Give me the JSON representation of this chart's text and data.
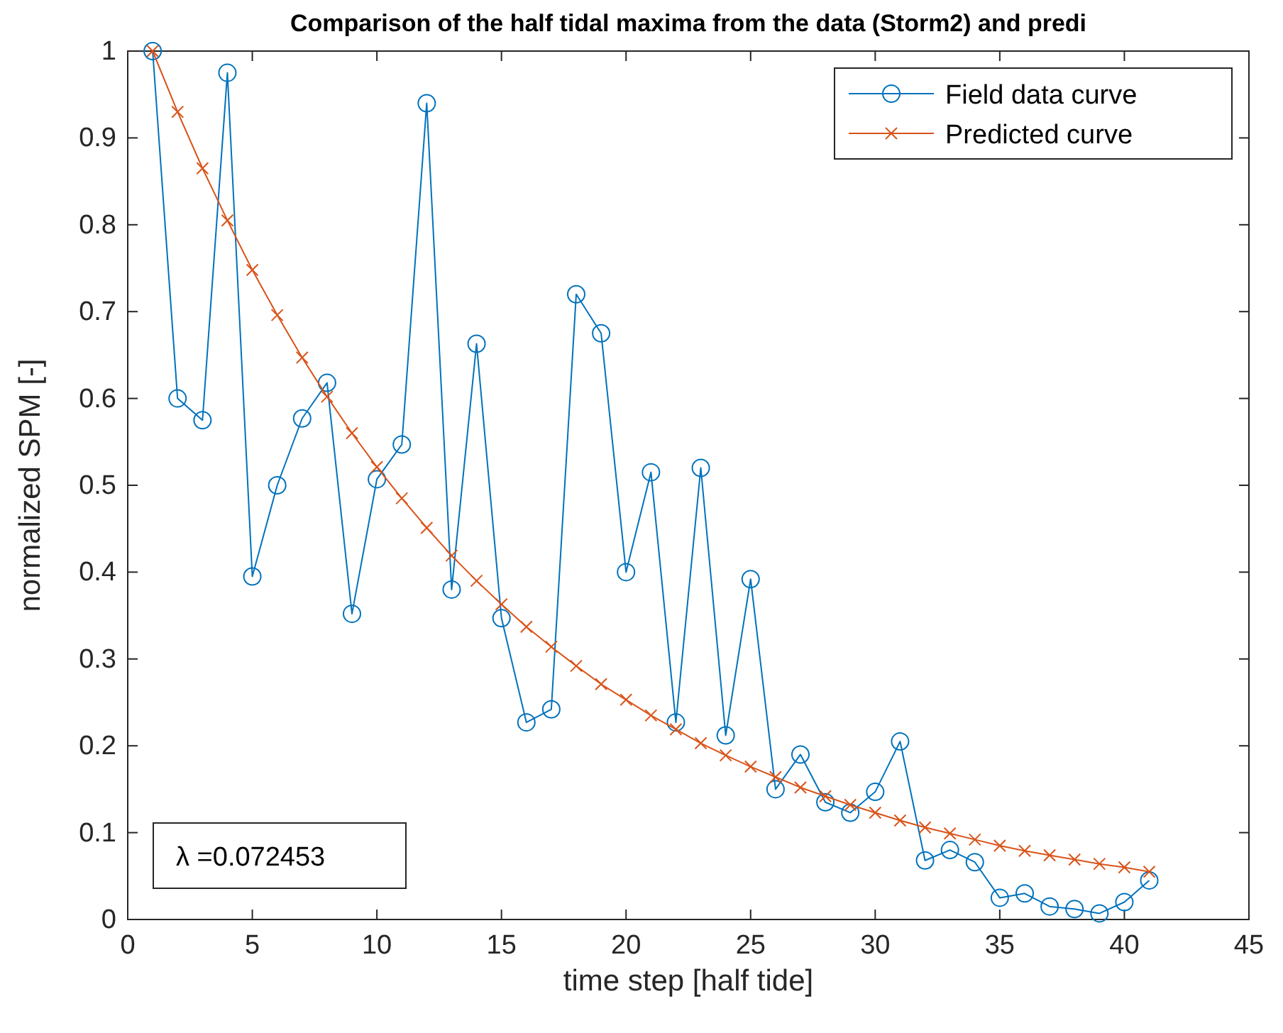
{
  "chart_data": {
    "type": "line",
    "title": "Comparison of the half tidal maxima from the data (Storm2) and predi",
    "xlabel": "time step [half tide]",
    "ylabel": "normalized SPM [-]",
    "x": [
      1,
      2,
      3,
      4,
      5,
      6,
      7,
      8,
      9,
      10,
      11,
      12,
      13,
      14,
      15,
      16,
      17,
      18,
      19,
      20,
      21,
      22,
      23,
      24,
      25,
      26,
      27,
      28,
      29,
      30,
      31,
      32,
      33,
      34,
      35,
      36,
      37,
      38,
      39,
      40,
      41
    ],
    "series": [
      {
        "name": "Field data curve",
        "color": "#0072bd",
        "marker": "circle",
        "values": [
          1.0,
          0.6,
          0.575,
          0.975,
          0.395,
          0.5,
          0.577,
          0.618,
          0.352,
          0.507,
          0.547,
          0.94,
          0.38,
          0.663,
          0.347,
          0.227,
          0.242,
          0.72,
          0.675,
          0.4,
          0.515,
          0.227,
          0.52,
          0.212,
          0.392,
          0.15,
          0.19,
          0.135,
          0.123,
          0.147,
          0.205,
          0.068,
          0.08,
          0.066,
          0.025,
          0.03,
          0.015,
          0.012,
          0.007,
          0.02,
          0.045
        ]
      },
      {
        "name": "Predicted curve",
        "color": "#d95319",
        "marker": "cross",
        "values": [
          1.0,
          0.93,
          0.865,
          0.805,
          0.748,
          0.696,
          0.647,
          0.602,
          0.56,
          0.521,
          0.485,
          0.451,
          0.419,
          0.39,
          0.363,
          0.337,
          0.314,
          0.292,
          0.271,
          0.253,
          0.235,
          0.219,
          0.203,
          0.189,
          0.176,
          0.164,
          0.152,
          0.142,
          0.132,
          0.123,
          0.114,
          0.106,
          0.099,
          0.092,
          0.085,
          0.079,
          0.074,
          0.069,
          0.064,
          0.06,
          0.055
        ]
      }
    ],
    "xlim": [
      0,
      45
    ],
    "xticks": [
      0,
      5,
      10,
      15,
      20,
      25,
      30,
      35,
      40,
      45
    ],
    "ylim": [
      0,
      1
    ],
    "yticks": [
      0,
      0.1,
      0.2,
      0.3,
      0.4,
      0.5,
      0.6,
      0.7,
      0.8,
      0.9,
      1
    ],
    "annotations": [
      "λ =0.072453"
    ],
    "legend": "top right",
    "grid": false,
    "line_style": "solid"
  }
}
